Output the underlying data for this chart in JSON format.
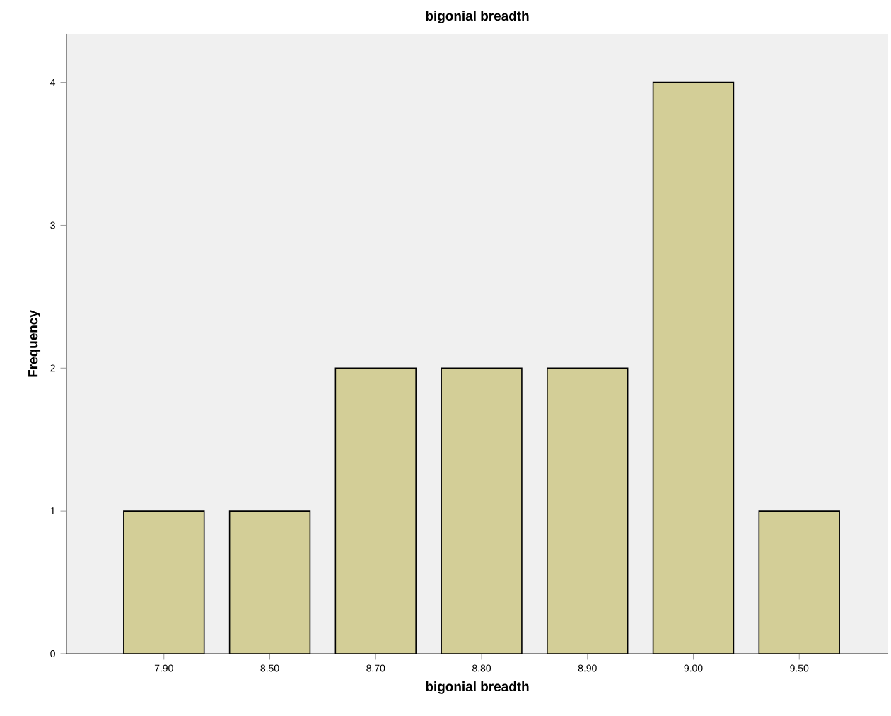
{
  "chart_data": {
    "type": "bar",
    "title": "bigonial breadth",
    "xlabel": "bigonial breadth",
    "ylabel": "Frequency",
    "categories": [
      "7.90",
      "8.50",
      "8.70",
      "8.80",
      "8.90",
      "9.00",
      "9.50"
    ],
    "values": [
      1,
      1,
      2,
      2,
      2,
      4,
      1
    ],
    "color": "#d3ce97",
    "ylim": [
      0,
      4.34
    ],
    "yticks": [
      0,
      1,
      2,
      3,
      4
    ]
  }
}
